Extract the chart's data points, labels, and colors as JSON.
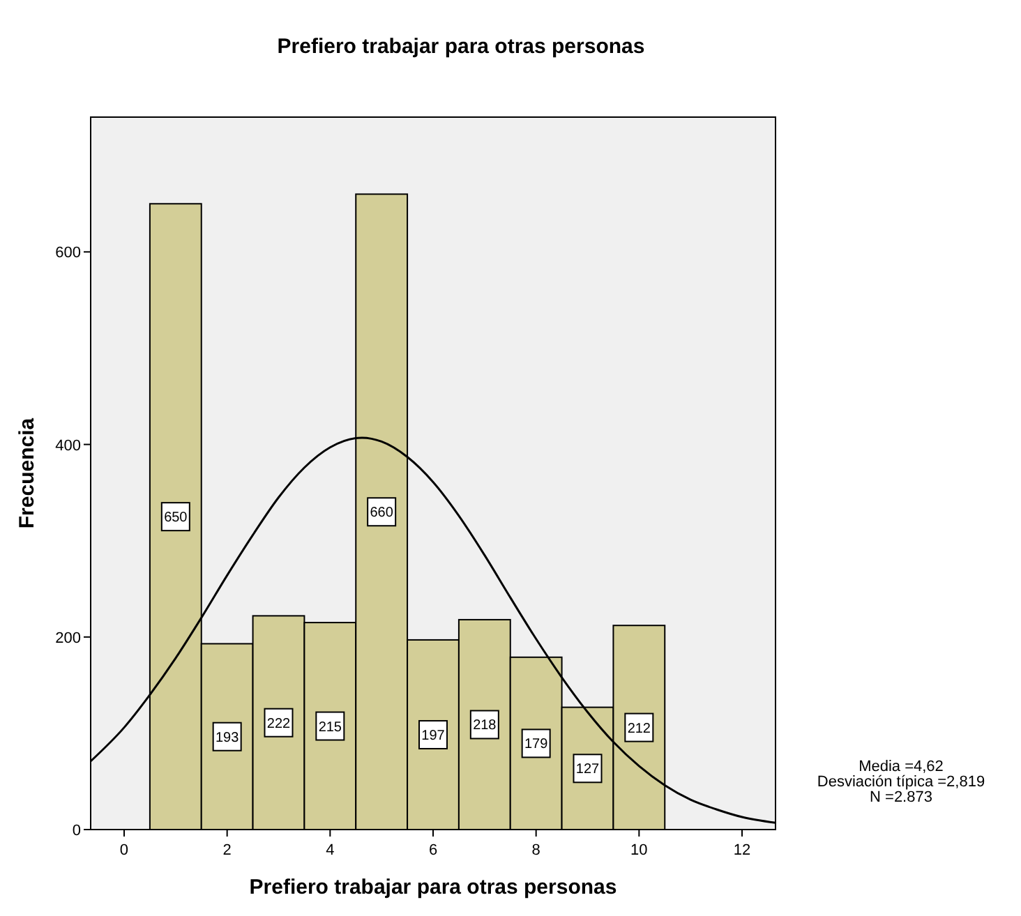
{
  "chart_data": {
    "type": "histogram",
    "title": "Prefiero trabajar para otras personas",
    "xlabel": "Prefiero trabajar para otras personas",
    "ylabel": "Frecuencia",
    "bins": [
      0.5,
      1.5,
      2.5,
      3.5,
      4.5,
      5.5,
      6.5,
      7.5,
      8.5,
      9.5,
      10.5
    ],
    "series": [
      {
        "color": "#d3ce97",
        "values": [
          650,
          193,
          222,
          215,
          660,
          197,
          218,
          179,
          127,
          212
        ],
        "value_labels": [
          "650",
          "193",
          "222",
          "215",
          "660",
          "197",
          "218",
          "179",
          "127",
          "212"
        ]
      },
      {
        "type": "line",
        "color": "#000000",
        "x": [
          -0.65,
          0,
          0.5,
          1,
          1.5,
          2,
          2.5,
          3,
          3.5,
          4,
          4.62,
          5,
          5.5,
          6,
          6.5,
          7,
          7.5,
          8,
          8.5,
          9,
          9.5,
          10,
          10.5,
          11,
          11.5,
          12,
          12.65
        ],
        "values": [
          71,
          106,
          140,
          178,
          220,
          264,
          306,
          345,
          376,
          397,
          407,
          403,
          387,
          361,
          326,
          285,
          241,
          198,
          158,
          122,
          91,
          66,
          46,
          31,
          21,
          13,
          7
        ]
      }
    ],
    "xlim": [
      -0.65,
      12.65
    ],
    "xticks": [
      0,
      2,
      4,
      6,
      8,
      10,
      12
    ],
    "ylim": [
      0,
      740
    ],
    "yticks": [
      0,
      200,
      400,
      600
    ],
    "grid": false,
    "marker": "none",
    "line_style": "solid",
    "annotations": [
      "Media =4,62",
      "Desviación típica =2,819",
      "N =2.873"
    ]
  }
}
